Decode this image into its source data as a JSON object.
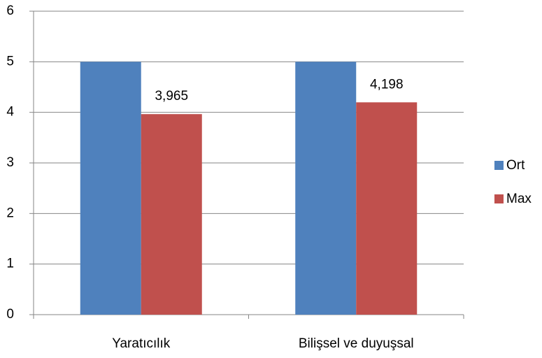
{
  "chart_data": {
    "type": "bar",
    "categories": [
      "Yaratıcılık",
      "Bilişsel ve duyuşsal"
    ],
    "series": [
      {
        "name": "Ort",
        "color": "#4f81bd",
        "values": [
          5,
          5
        ]
      },
      {
        "name": "Max",
        "color": "#c0504d",
        "values": [
          3.965,
          4.198
        ],
        "value_labels": [
          "3,965",
          "4,198"
        ]
      }
    ],
    "ylim": [
      0,
      6
    ],
    "yticks": [
      0,
      1,
      2,
      3,
      4,
      5,
      6
    ],
    "grid": true,
    "legend": "right"
  }
}
